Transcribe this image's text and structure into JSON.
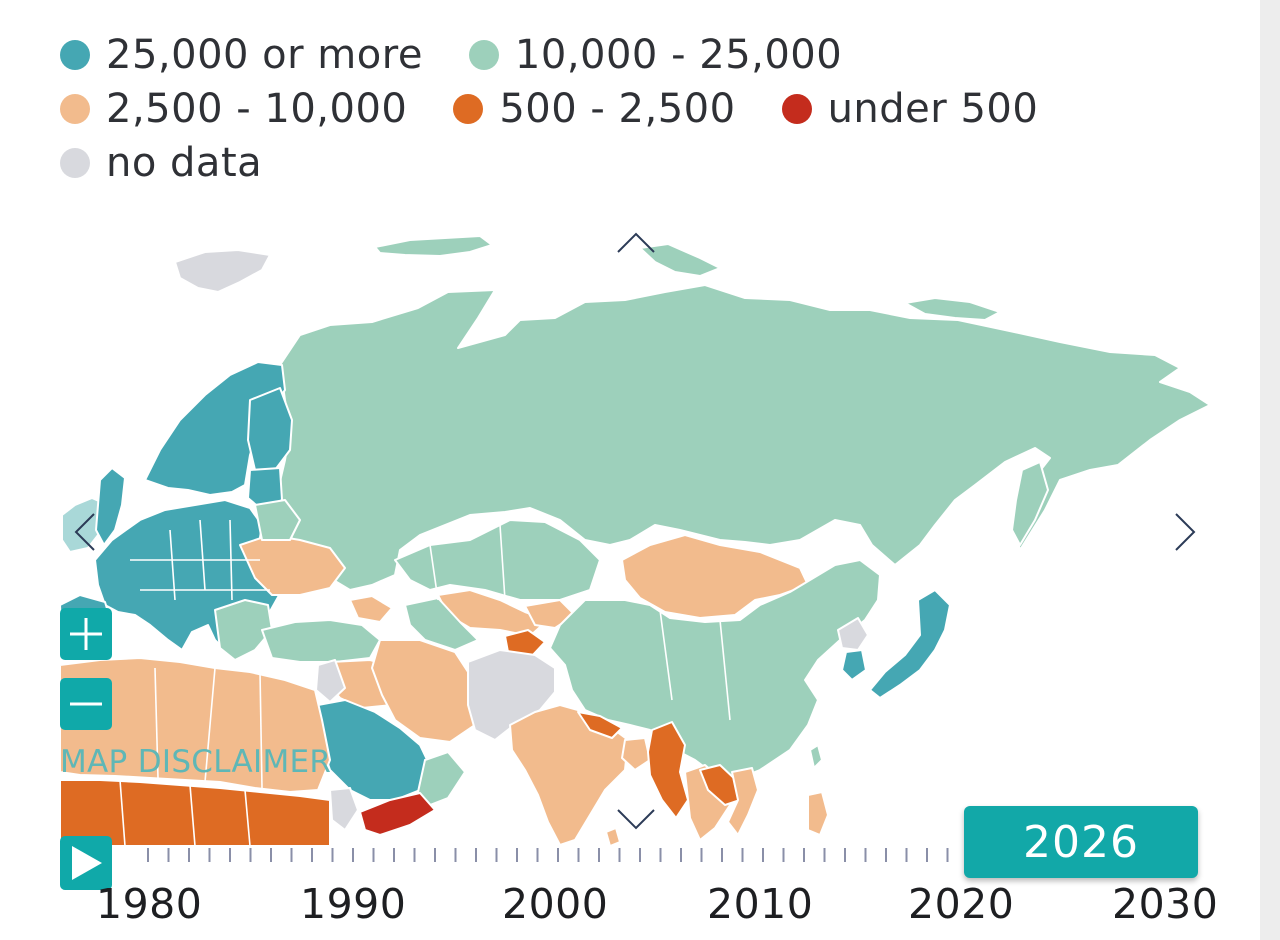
{
  "legend": {
    "items": [
      {
        "label": "25,000 or more",
        "color": "#45a7b3"
      },
      {
        "label": "10,000 - 25,000",
        "color": "#9dd0bb"
      },
      {
        "label": "2,500 - 10,000",
        "color": "#f2bb8d"
      },
      {
        "label": "500 - 2,500",
        "color": "#de6b23"
      },
      {
        "label": "under 500",
        "color": "#c42c1d"
      },
      {
        "label": "no data",
        "color": "#d8d9de"
      }
    ]
  },
  "map": {
    "disclaimer_label": "MAP DISCLAIMER",
    "icons": {
      "up": "chevron-up-icon",
      "down": "chevron-down-icon",
      "left": "chevron-left-icon",
      "right": "chevron-right-icon",
      "zoom_in": "plus-icon",
      "zoom_out": "minus-icon",
      "play": "play-icon"
    }
  },
  "timeline": {
    "current_year": "2026",
    "axis_labels": [
      "1980",
      "1990",
      "2000",
      "2010",
      "2020",
      "2030"
    ],
    "start_year": 1976,
    "end_year": 2030
  }
}
